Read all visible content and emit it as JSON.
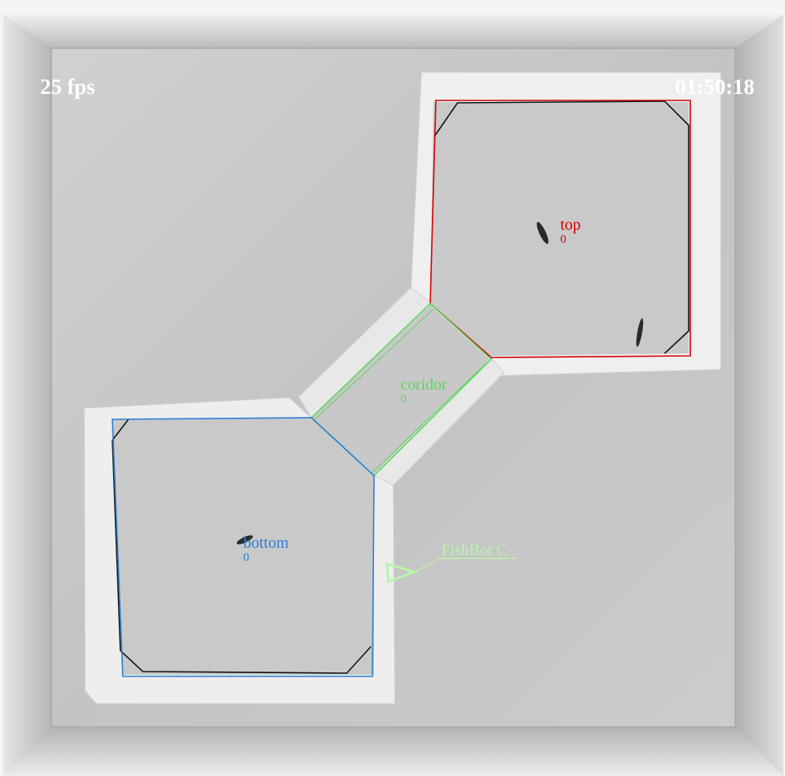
{
  "hud": {
    "fps": "25 fps",
    "clock": "01:50:18"
  },
  "zones": {
    "top": {
      "name": "top",
      "count": "0",
      "color": "#d40000"
    },
    "corridor": {
      "name": "coridor",
      "count": "0",
      "color": "#5fd35f"
    },
    "bottom": {
      "name": "bottom",
      "count": "0",
      "color": "#2a7fd4"
    }
  },
  "robot": {
    "label": "FishBot C",
    "color": "#b8f5a8"
  },
  "icons": {
    "robot_marker": "triangle-icon"
  }
}
